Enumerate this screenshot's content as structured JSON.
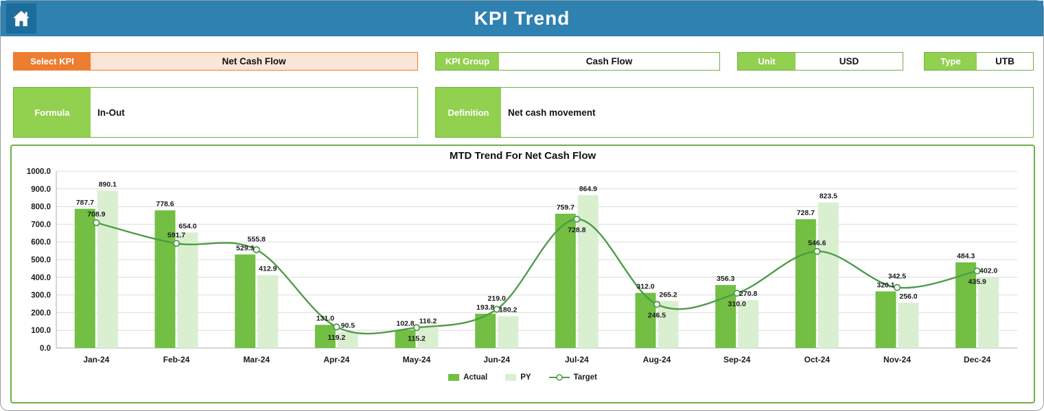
{
  "header": {
    "title": "KPI Trend"
  },
  "filters": {
    "select_kpi": {
      "label": "Select KPI",
      "value": "Net Cash Flow"
    },
    "kpi_group": {
      "label": "KPI Group",
      "value": "Cash Flow"
    },
    "unit": {
      "label": "Unit",
      "value": "USD"
    },
    "type": {
      "label": "Type",
      "value": "UTB"
    },
    "formula": {
      "label": "Formula",
      "value": "In-Out"
    },
    "definition": {
      "label": "Definition",
      "value": "Net cash movement"
    }
  },
  "chart_data": {
    "type": "combo",
    "title": "MTD Trend For Net Cash Flow",
    "categories": [
      "Jan-24",
      "Feb-24",
      "Mar-24",
      "Apr-24",
      "May-24",
      "Jun-24",
      "Jul-24",
      "Aug-24",
      "Sep-24",
      "Oct-24",
      "Nov-24",
      "Dec-24"
    ],
    "series": [
      {
        "name": "Actual",
        "type": "bar",
        "color": "#72BF44",
        "values": [
          787.7,
          778.6,
          529.3,
          131.0,
          102.8,
          193.8,
          759.7,
          312.0,
          356.3,
          728.7,
          320.1,
          484.3
        ]
      },
      {
        "name": "PY",
        "type": "bar",
        "color": "#DAEFD0",
        "values": [
          890.1,
          654.0,
          412.9,
          90.5,
          116.2,
          180.2,
          864.9,
          265.2,
          270.8,
          823.5,
          256.0,
          402.0
        ]
      },
      {
        "name": "Target",
        "type": "line",
        "color": "#4E9B47",
        "values": [
          708.9,
          591.7,
          555.8,
          119.2,
          115.2,
          219.0,
          728.8,
          246.5,
          310.0,
          546.6,
          342.5,
          435.9
        ]
      }
    ],
    "xlabel": "",
    "ylabel": "",
    "ylim": [
      0,
      1000
    ],
    "ytick_step": 100,
    "grid": true,
    "legend_position": "bottom"
  },
  "colors": {
    "header_bg": "#2E81B0",
    "home_tile_bg": "#1C6D9C",
    "accent_orange": "#ED7D31",
    "accent_orange_light": "#FBE5D6",
    "accent_green": "#92D050",
    "border_green": "#6FAE45"
  }
}
